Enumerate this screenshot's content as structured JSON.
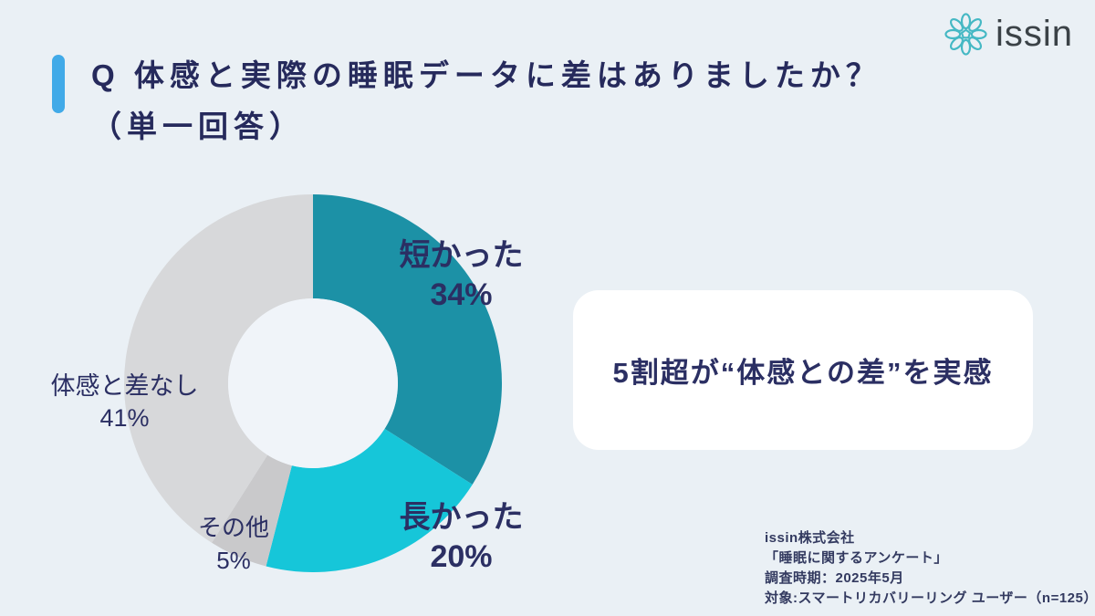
{
  "colors": {
    "background": "#eaf0f5",
    "accent": "#41aae8",
    "heading": "#262a5c",
    "label": "#2b2f63",
    "footnote": "#333a60",
    "card_bg": "#ffffff",
    "logo_icon": "#45b8c4",
    "logo_text": "#3b4247"
  },
  "logo": {
    "text": "issin",
    "icon": "flower-icon"
  },
  "title": {
    "line1": "Q 体感と実際の睡眠データに差はありましたか？",
    "line2": "（単一回答）"
  },
  "chart_data": {
    "type": "pie",
    "style": "donut",
    "title": "体感と実際の睡眠データに差はありましたか？（単一回答）",
    "start_angle_deg": 0,
    "direction": "clockwise",
    "hole_color": "#f0f4f9",
    "segments": [
      {
        "label": "短かった",
        "value_pct": 34,
        "display_pct": "34%",
        "color": "#1c91a6"
      },
      {
        "label": "長かった",
        "value_pct": 20,
        "display_pct": "20%",
        "color": "#16c6d9"
      },
      {
        "label": "その他",
        "value_pct": 5,
        "display_pct": "5%",
        "color": "#c9c9cb"
      },
      {
        "label": "体感と差なし",
        "value_pct": 41,
        "display_pct": "41%",
        "color": "#d7d8da"
      }
    ]
  },
  "highlight_card": {
    "text": "5割超が“体感との差”を実感"
  },
  "footnote": {
    "lines": [
      "issin株式会社",
      "「睡眠に関するアンケート」",
      "調査時期：2025年5月",
      "対象:スマートリカバリーリング ユーザー（n=125）"
    ]
  }
}
